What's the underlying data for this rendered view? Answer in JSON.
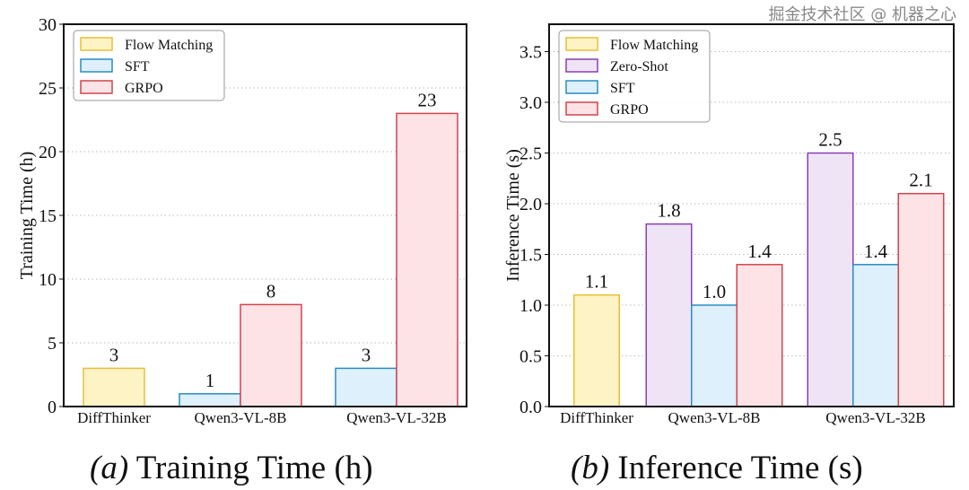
{
  "colors": {
    "Flow Matching": {
      "fill": "#fdf3c4",
      "stroke": "#e8bf3a"
    },
    "Zero-Shot": {
      "fill": "#efe3f6",
      "stroke": "#8a3fb0"
    },
    "SFT": {
      "fill": "#ddf0fb",
      "stroke": "#2a8cc4"
    },
    "GRPO": {
      "fill": "#fde3e6",
      "stroke": "#d0454c"
    }
  },
  "chart_data": [
    {
      "type": "bar",
      "caption_label": "(a)",
      "caption_text": "Training Time (h)",
      "ylabel": "Training Time (h)",
      "xlabel": "",
      "ylim": [
        0,
        30
      ],
      "yticks": [
        "0",
        "5",
        "10",
        "15",
        "20",
        "25",
        "30"
      ],
      "ytick_values": [
        0,
        5,
        10,
        15,
        20,
        25,
        30
      ],
      "categories": [
        "DiffThinker",
        "Qwen3-VL-8B",
        "Qwen3-VL-32B"
      ],
      "legend": [
        "Flow Matching",
        "SFT",
        "GRPO"
      ],
      "legend_position": "top-left",
      "grid": "y-dotted",
      "bars": [
        {
          "category": "DiffThinker",
          "series": "Flow Matching",
          "value": 3,
          "label": "3"
        },
        {
          "category": "Qwen3-VL-8B",
          "series": "SFT",
          "value": 1,
          "label": "1"
        },
        {
          "category": "Qwen3-VL-8B",
          "series": "GRPO",
          "value": 8,
          "label": "8"
        },
        {
          "category": "Qwen3-VL-32B",
          "series": "SFT",
          "value": 3,
          "label": "3"
        },
        {
          "category": "Qwen3-VL-32B",
          "series": "GRPO",
          "value": 23,
          "label": "23"
        }
      ]
    },
    {
      "type": "bar",
      "caption_label": "(b)",
      "caption_text": "Inference Time (s)",
      "ylabel": "Inference Time (s)",
      "xlabel": "",
      "ylim": [
        0,
        3.77
      ],
      "yticks": [
        "0.0",
        "0.5",
        "1.0",
        "1.5",
        "2.0",
        "2.5",
        "3.0",
        "3.5"
      ],
      "ytick_values": [
        0,
        0.5,
        1,
        1.5,
        2,
        2.5,
        3,
        3.5
      ],
      "categories": [
        "DiffThinker",
        "Qwen3-VL-8B",
        "Qwen3-VL-32B"
      ],
      "legend": [
        "Flow Matching",
        "Zero-Shot",
        "SFT",
        "GRPO"
      ],
      "legend_position": "top-left",
      "grid": "y-dotted",
      "bars": [
        {
          "category": "DiffThinker",
          "series": "Flow Matching",
          "value": 1.1,
          "label": "1.1"
        },
        {
          "category": "Qwen3-VL-8B",
          "series": "Zero-Shot",
          "value": 1.8,
          "label": "1.8"
        },
        {
          "category": "Qwen3-VL-8B",
          "series": "SFT",
          "value": 1.0,
          "label": "1.0"
        },
        {
          "category": "Qwen3-VL-8B",
          "series": "GRPO",
          "value": 1.4,
          "label": "1.4"
        },
        {
          "category": "Qwen3-VL-32B",
          "series": "Zero-Shot",
          "value": 2.5,
          "label": "2.5"
        },
        {
          "category": "Qwen3-VL-32B",
          "series": "SFT",
          "value": 1.4,
          "label": "1.4"
        },
        {
          "category": "Qwen3-VL-32B",
          "series": "GRPO",
          "value": 2.1,
          "label": "2.1"
        }
      ]
    }
  ],
  "watermark": "掘金技术社区 @ 机器之心"
}
